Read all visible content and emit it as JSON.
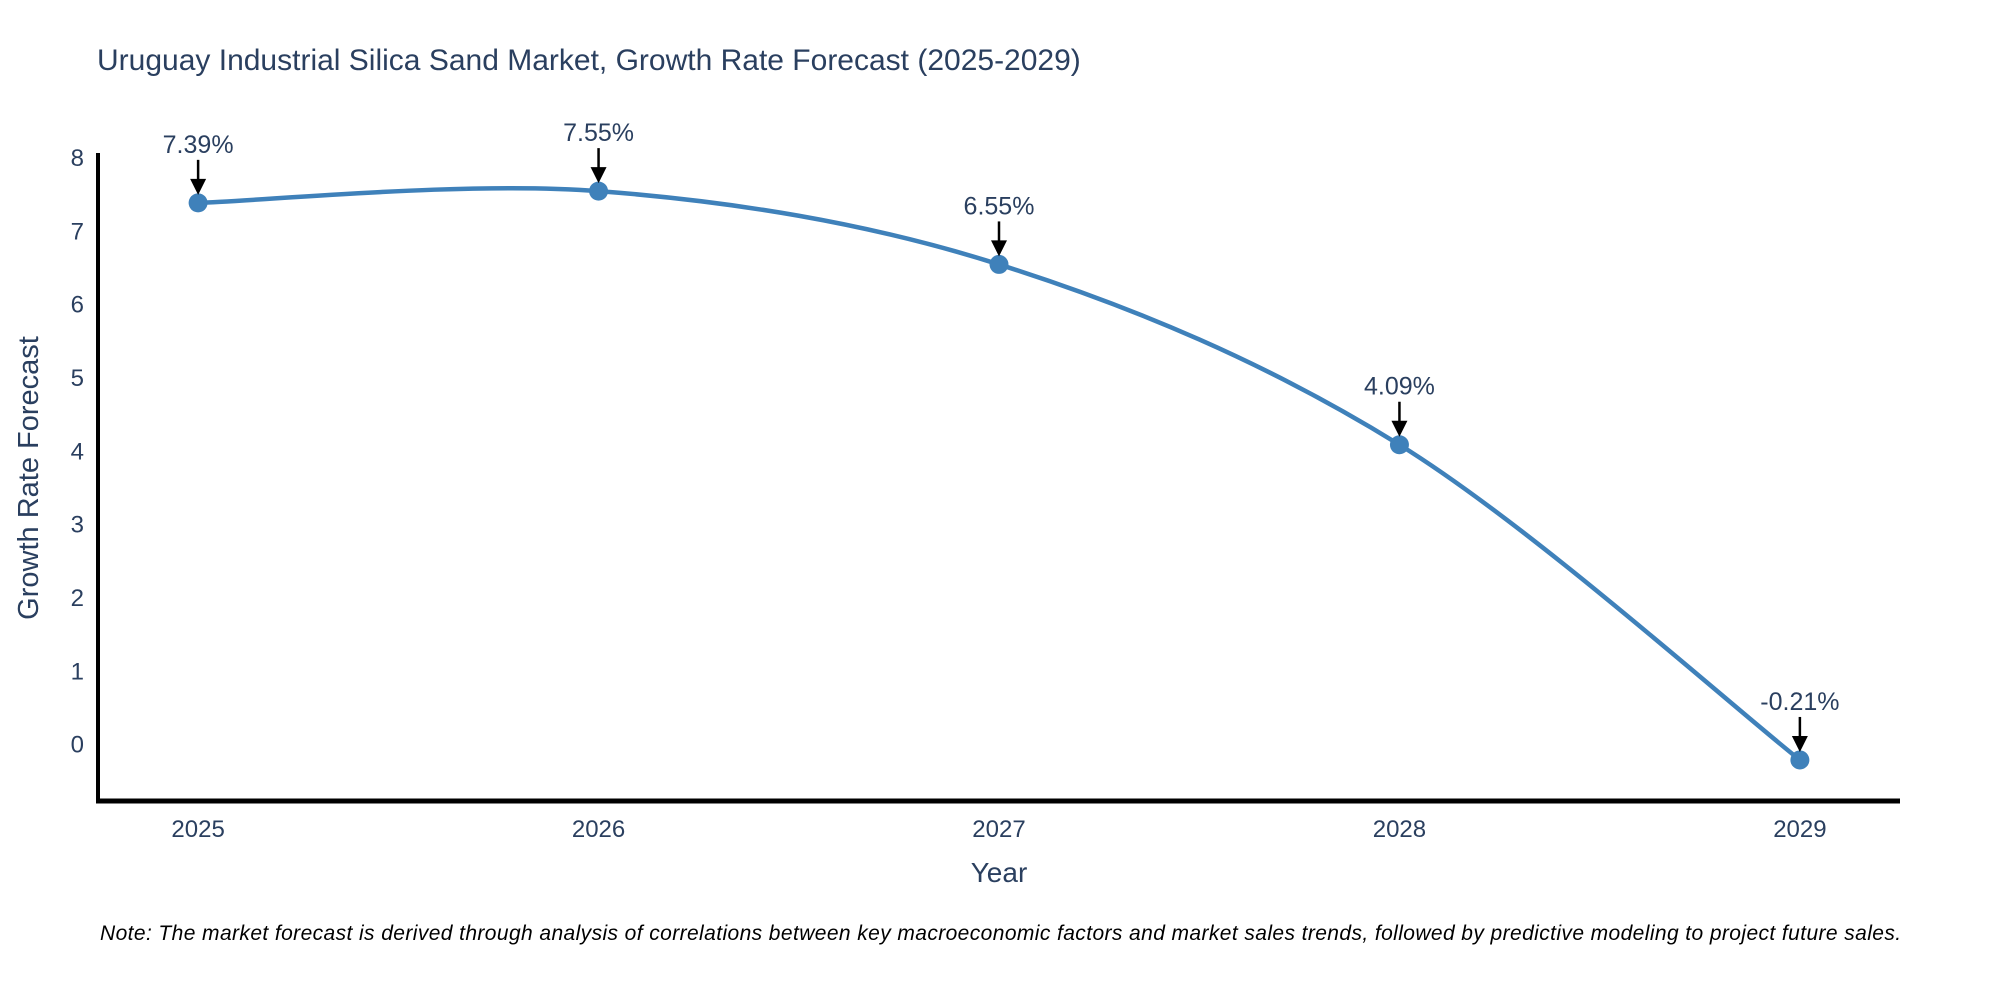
{
  "figure": {
    "background": "#ffffff"
  },
  "chart_data": {
    "type": "line",
    "title": "Uruguay Industrial Silica Sand Market, Growth Rate Forecast (2025-2029)",
    "xlabel": "Year",
    "ylabel": "Growth Rate Forecast",
    "categories": [
      "2025",
      "2026",
      "2027",
      "2028",
      "2029"
    ],
    "x": [
      2025,
      2026,
      2027,
      2028,
      2029
    ],
    "values": [
      7.39,
      7.55,
      6.55,
      4.09,
      -0.21
    ],
    "point_labels": [
      "7.39%",
      "7.55%",
      "6.55%",
      "4.09%",
      "-0.21%"
    ],
    "y_ticks": [
      0,
      1,
      2,
      3,
      4,
      5,
      6,
      7,
      8
    ],
    "ylim": [
      -0.77,
      8.07
    ],
    "xlim": [
      2024.75,
      2029.25
    ],
    "grid": false,
    "legend": "none",
    "line_shape": "spline",
    "marker_style": "circle",
    "annotation_style": "arrow-down",
    "colors": {
      "line": "#3f81ba",
      "marker": "#3f81ba",
      "axis": "#000000",
      "arrow": "#000000",
      "title_text": "#2a3f5f",
      "tick_text": "#2a3f5f",
      "note_text": "#000000"
    }
  },
  "note": {
    "text": "Note: The market forecast is derived through analysis of correlations between key macroeconomic factors and market sales trends, followed by predictive modeling to project future sales."
  }
}
